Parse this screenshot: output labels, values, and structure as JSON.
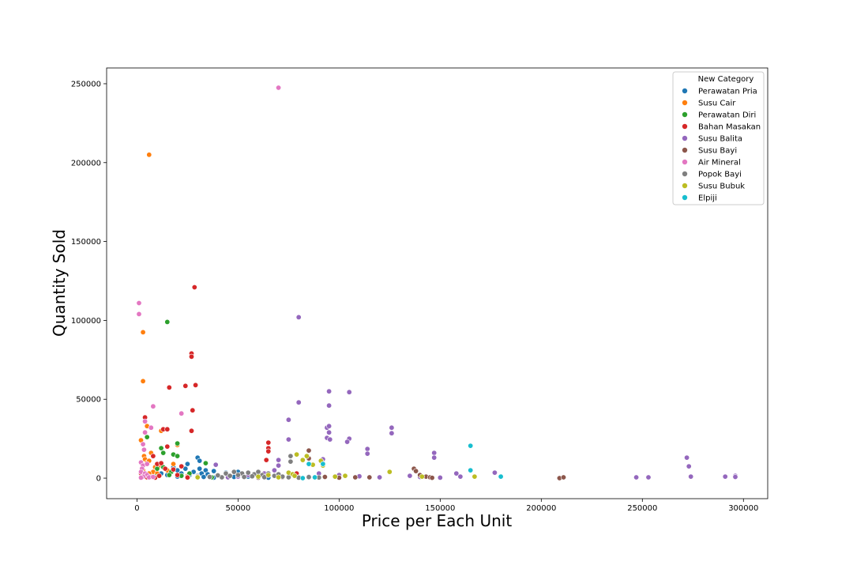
{
  "chart_data": {
    "type": "scatter",
    "title": "",
    "xlabel": "Price per Each Unit",
    "ylabel": "Quantity Sold",
    "xlim": [
      -15000,
      312000
    ],
    "ylim": [
      -13000,
      260000
    ],
    "x_ticks": [
      0,
      50000,
      100000,
      150000,
      200000,
      250000,
      300000
    ],
    "y_ticks": [
      0,
      50000,
      100000,
      150000,
      200000,
      250000
    ],
    "grid": false,
    "legend": {
      "title": "New Category",
      "placement": "top-right"
    },
    "series": [
      {
        "name": "Perawatan Pria",
        "color": "#1f77b4",
        "points": [
          [
            20000,
            5000
          ],
          [
            22000,
            3000
          ],
          [
            24000,
            6000
          ],
          [
            26000,
            2000
          ],
          [
            28000,
            4000
          ],
          [
            30000,
            1500
          ],
          [
            31000,
            6000
          ],
          [
            32000,
            3000
          ],
          [
            33000,
            800
          ],
          [
            34000,
            5000
          ],
          [
            35000,
            2500
          ],
          [
            36000,
            1000
          ],
          [
            38000,
            300
          ],
          [
            40000,
            2000
          ],
          [
            42000,
            500
          ],
          [
            45000,
            1500
          ],
          [
            48000,
            800
          ],
          [
            50000,
            4000
          ],
          [
            30000,
            13000
          ],
          [
            31000,
            11000
          ],
          [
            25000,
            9000
          ],
          [
            20000,
            1000
          ],
          [
            18000,
            7000
          ],
          [
            38000,
            4500
          ],
          [
            55000,
            1000
          ],
          [
            60000,
            500
          ],
          [
            65000,
            300
          ],
          [
            15000,
            2000
          ],
          [
            12000,
            3000
          ],
          [
            44000,
            3500
          ]
        ]
      },
      {
        "name": "Susu Cair",
        "color": "#ff7f0e",
        "points": [
          [
            6000,
            205000
          ],
          [
            3000,
            92500
          ],
          [
            3000,
            61500
          ],
          [
            5000,
            33000
          ],
          [
            2000,
            24000
          ],
          [
            3500,
            14000
          ],
          [
            4000,
            12000
          ],
          [
            5000,
            10000
          ],
          [
            6000,
            11000
          ],
          [
            7000,
            16000
          ],
          [
            8000,
            4000
          ],
          [
            10000,
            3000
          ],
          [
            12000,
            30000
          ],
          [
            20000,
            21000
          ],
          [
            18000,
            9000
          ],
          [
            9000,
            7000
          ],
          [
            15000,
            5000
          ],
          [
            4000,
            2000
          ],
          [
            25000,
            1500
          ],
          [
            11000,
            8000
          ],
          [
            6000,
            3000
          ],
          [
            3000,
            5000
          ]
        ]
      },
      {
        "name": "Perawatan Diri",
        "color": "#2ca02c",
        "points": [
          [
            15000,
            99000
          ],
          [
            5000,
            26000
          ],
          [
            12000,
            19000
          ],
          [
            13000,
            16000
          ],
          [
            18000,
            15000
          ],
          [
            20000,
            22000
          ],
          [
            17000,
            4000
          ],
          [
            20000,
            14000
          ],
          [
            34000,
            9500
          ],
          [
            9000,
            1000
          ],
          [
            16000,
            2000
          ],
          [
            22000,
            1500
          ],
          [
            26000,
            3000
          ],
          [
            30000,
            800
          ],
          [
            37000,
            500
          ],
          [
            10000,
            6000
          ],
          [
            13000,
            7000
          ],
          [
            25000,
            600
          ]
        ]
      },
      {
        "name": "Bahan Masakan",
        "color": "#d62728",
        "points": [
          [
            28500,
            121000
          ],
          [
            27000,
            79000
          ],
          [
            27000,
            77000
          ],
          [
            16000,
            57500
          ],
          [
            24000,
            58500
          ],
          [
            29000,
            59000
          ],
          [
            27500,
            43000
          ],
          [
            27000,
            30000
          ],
          [
            4000,
            38500
          ],
          [
            13000,
            31000
          ],
          [
            15000,
            31000
          ],
          [
            10000,
            9000
          ],
          [
            12000,
            9500
          ],
          [
            14000,
            6000
          ],
          [
            18000,
            5500
          ],
          [
            2000,
            3000
          ],
          [
            3500,
            1000
          ],
          [
            5000,
            500
          ],
          [
            7000,
            800
          ],
          [
            9000,
            300
          ],
          [
            11000,
            1500
          ],
          [
            20000,
            2000
          ],
          [
            25000,
            400
          ],
          [
            65000,
            22500
          ],
          [
            65000,
            19000
          ],
          [
            65000,
            17000
          ],
          [
            64000,
            11500
          ],
          [
            79000,
            3000
          ],
          [
            15000,
            20000
          ],
          [
            8000,
            14000
          ],
          [
            30000,
            1000
          ],
          [
            22000,
            7500
          ]
        ]
      },
      {
        "name": "Susu Balita",
        "color": "#9467bd",
        "points": [
          [
            80000,
            102000
          ],
          [
            95000,
            55000
          ],
          [
            105000,
            54500
          ],
          [
            80000,
            48000
          ],
          [
            95000,
            46000
          ],
          [
            75000,
            37000
          ],
          [
            94000,
            32000
          ],
          [
            95000,
            33000
          ],
          [
            95000,
            29000
          ],
          [
            94000,
            25500
          ],
          [
            95500,
            24500
          ],
          [
            75000,
            24500
          ],
          [
            105000,
            25000
          ],
          [
            104000,
            23000
          ],
          [
            114000,
            18500
          ],
          [
            114000,
            15500
          ],
          [
            126000,
            32000
          ],
          [
            126000,
            28500
          ],
          [
            147000,
            16000
          ],
          [
            147000,
            13000
          ],
          [
            165000,
            20500
          ],
          [
            272000,
            13000
          ],
          [
            273000,
            7500
          ],
          [
            274000,
            1000
          ],
          [
            247000,
            500
          ],
          [
            253000,
            500
          ],
          [
            291000,
            1000
          ],
          [
            296000,
            1500
          ],
          [
            296000,
            800
          ],
          [
            177000,
            3500
          ],
          [
            160000,
            1000
          ],
          [
            158000,
            3000
          ],
          [
            135000,
            1500
          ],
          [
            100000,
            2000
          ],
          [
            92000,
            12000
          ],
          [
            92000,
            9500
          ],
          [
            85000,
            1000
          ],
          [
            70000,
            11500
          ],
          [
            70000,
            8000
          ],
          [
            68000,
            5000
          ],
          [
            63000,
            3000
          ],
          [
            55000,
            2000
          ],
          [
            50000,
            1000
          ],
          [
            39000,
            8500
          ],
          [
            45000,
            500
          ],
          [
            120000,
            500
          ],
          [
            140000,
            800
          ],
          [
            150000,
            300
          ],
          [
            90000,
            3000
          ],
          [
            110000,
            1200
          ]
        ]
      },
      {
        "name": "Susu Bayi",
        "color": "#8c564b",
        "points": [
          [
            137000,
            6000
          ],
          [
            138000,
            4500
          ],
          [
            140000,
            2000
          ],
          [
            143000,
            1000
          ],
          [
            145000,
            500
          ],
          [
            85000,
            17500
          ],
          [
            85000,
            12500
          ],
          [
            209000,
            0
          ],
          [
            211000,
            500
          ],
          [
            115000,
            500
          ],
          [
            108000,
            500
          ],
          [
            93000,
            800
          ],
          [
            80000,
            500
          ],
          [
            70000,
            1000
          ],
          [
            60000,
            300
          ],
          [
            72000,
            500
          ],
          [
            146000,
            200
          ],
          [
            100000,
            300
          ]
        ]
      },
      {
        "name": "Air Mineral",
        "color": "#e377c2",
        "points": [
          [
            70000,
            247500
          ],
          [
            1000,
            111000
          ],
          [
            1000,
            104000
          ],
          [
            8000,
            45500
          ],
          [
            22000,
            41000
          ],
          [
            4000,
            36000
          ],
          [
            4000,
            29000
          ],
          [
            7000,
            32000
          ],
          [
            3000,
            21500
          ],
          [
            3500,
            18000
          ],
          [
            2000,
            10000
          ],
          [
            3000,
            8000
          ],
          [
            2500,
            6000
          ],
          [
            2000,
            4000
          ],
          [
            4000,
            3000
          ],
          [
            5000,
            2000
          ],
          [
            3000,
            1000
          ],
          [
            6000,
            500
          ],
          [
            8000,
            800
          ],
          [
            2000,
            300
          ],
          [
            5000,
            9000
          ]
        ]
      },
      {
        "name": "Popok Bayi",
        "color": "#7f7f7f",
        "points": [
          [
            48000,
            4000
          ],
          [
            52000,
            3000
          ],
          [
            55000,
            3500
          ],
          [
            58000,
            2500
          ],
          [
            60000,
            4000
          ],
          [
            62000,
            2000
          ],
          [
            65000,
            3000
          ],
          [
            68000,
            1500
          ],
          [
            70000,
            2500
          ],
          [
            72000,
            1000
          ],
          [
            75000,
            500
          ],
          [
            76000,
            14000
          ],
          [
            76000,
            10500
          ],
          [
            42000,
            500
          ],
          [
            44000,
            3000
          ],
          [
            46000,
            1500
          ],
          [
            50000,
            2000
          ],
          [
            53000,
            800
          ],
          [
            57000,
            1200
          ],
          [
            63000,
            600
          ],
          [
            80000,
            300
          ],
          [
            85000,
            700
          ],
          [
            90000,
            400
          ],
          [
            36000,
            800
          ],
          [
            40000,
            1800
          ]
        ]
      },
      {
        "name": "Susu Bubuk",
        "color": "#bcbd22",
        "points": [
          [
            79000,
            15000
          ],
          [
            75000,
            3500
          ],
          [
            77000,
            2500
          ],
          [
            78000,
            1500
          ],
          [
            82000,
            11500
          ],
          [
            84000,
            14000
          ],
          [
            87000,
            8500
          ],
          [
            91000,
            11000
          ],
          [
            92000,
            8000
          ],
          [
            103000,
            1500
          ],
          [
            125000,
            4000
          ],
          [
            141000,
            1000
          ],
          [
            167000,
            1000
          ],
          [
            60000,
            1000
          ],
          [
            65000,
            2000
          ],
          [
            70000,
            500
          ],
          [
            98000,
            1000
          ],
          [
            30000,
            500
          ]
        ]
      },
      {
        "name": "Elpiji",
        "color": "#17becf",
        "points": [
          [
            165000,
            20500
          ],
          [
            165000,
            5000
          ],
          [
            180000,
            1000
          ],
          [
            82000,
            0
          ],
          [
            85000,
            9000
          ],
          [
            92000,
            9000
          ],
          [
            88000,
            500
          ]
        ]
      }
    ]
  }
}
